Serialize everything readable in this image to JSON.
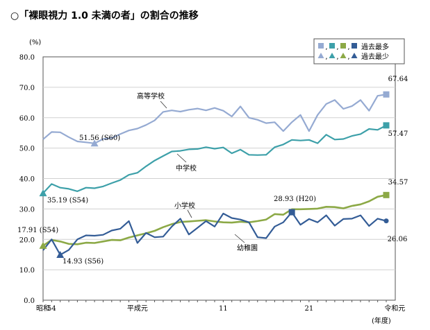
{
  "title": "○「裸眼視力 1.0 未満の者」の割合の推移",
  "chart_data": {
    "type": "line",
    "title": "○「裸眼視力 1.0 未満の者」の割合の推移",
    "y_unit": "(%)",
    "x_unit": "(年度)",
    "ylim": [
      0,
      80
    ],
    "y_ticks": [
      "0.0",
      "10.0",
      "20.0",
      "30.0",
      "40.0",
      "50.0",
      "60.0",
      "70.0",
      "80.0"
    ],
    "x_tick_labels": [
      {
        "i": 0,
        "label": "昭和"
      },
      {
        "i": 1,
        "label": "54"
      },
      {
        "i": 11,
        "label": "平成元"
      },
      {
        "i": 21,
        "label": "11"
      },
      {
        "i": 31,
        "label": "21"
      },
      {
        "i": 41,
        "label": "令和元"
      }
    ],
    "grid": true,
    "series": [
      {
        "name": "高等学校",
        "color": "#95aad2",
        "values": [
          52.9,
          55.3,
          55.2,
          53.6,
          52.2,
          51.9,
          51.56,
          53.0,
          53.3,
          54.6,
          55.8,
          56.4,
          57.6,
          59.1,
          61.9,
          62.4,
          62.0,
          62.6,
          63.0,
          62.4,
          63.2,
          62.3,
          60.4,
          63.7,
          60.0,
          59.3,
          58.2,
          58.5,
          55.6,
          58.5,
          60.9,
          55.6,
          60.9,
          64.5,
          65.8,
          62.9,
          63.8,
          65.8,
          62.3,
          67.2,
          67.64
        ]
      },
      {
        "name": "中学校",
        "color": "#3da0a9",
        "values": [
          35.19,
          38.2,
          37.0,
          36.6,
          35.8,
          37.0,
          36.8,
          37.4,
          38.5,
          39.5,
          41.2,
          41.9,
          44.0,
          45.9,
          47.4,
          48.9,
          49.1,
          49.6,
          49.7,
          50.3,
          49.8,
          50.2,
          48.3,
          49.5,
          47.8,
          47.7,
          47.8,
          50.3,
          51.2,
          52.7,
          52.5,
          52.7,
          51.6,
          54.4,
          52.8,
          53.0,
          54.0,
          54.6,
          56.3,
          56.0,
          57.47
        ]
      },
      {
        "name": "小学校",
        "color": "#8ca946",
        "values": [
          17.91,
          19.8,
          19.3,
          18.5,
          18.4,
          18.9,
          18.8,
          19.3,
          19.8,
          19.7,
          20.6,
          21.3,
          22.0,
          22.8,
          24.0,
          25.0,
          25.7,
          25.9,
          26.1,
          26.3,
          25.9,
          25.6,
          25.5,
          25.8,
          25.6,
          26.0,
          26.5,
          28.3,
          28.1,
          29.9,
          29.9,
          30.0,
          30.1,
          30.7,
          30.6,
          30.2,
          31.0,
          31.5,
          32.5,
          34.0,
          34.57
        ]
      },
      {
        "name": "幼稚園",
        "color": "#335c96",
        "values": [
          16.4,
          20.0,
          14.93,
          16.5,
          20.0,
          21.3,
          21.2,
          21.5,
          22.9,
          23.5,
          26.0,
          18.8,
          22.1,
          20.7,
          20.9,
          24.2,
          26.8,
          21.6,
          23.8,
          26.0,
          24.2,
          28.5,
          27.0,
          26.5,
          25.6,
          20.7,
          20.4,
          24.2,
          25.6,
          28.93,
          24.8,
          26.7,
          25.6,
          27.9,
          24.5,
          26.7,
          26.8,
          27.9,
          24.4,
          26.8,
          26.06
        ]
      }
    ],
    "annotations": [
      {
        "text": "67.64"
      },
      {
        "text": "57.47"
      },
      {
        "text": "51.56 (S60)"
      },
      {
        "text": "35.19 (S54)"
      },
      {
        "text": "34.57"
      },
      {
        "text": "28.93 (H20)"
      },
      {
        "text": "17.91 (S54)"
      },
      {
        "text": "14.93 (S56)"
      },
      {
        "text": "26.06"
      }
    ],
    "legend": {
      "max_label": "過去最多",
      "min_label": "過去最少",
      "sep": ",",
      "position": "top-right"
    }
  }
}
